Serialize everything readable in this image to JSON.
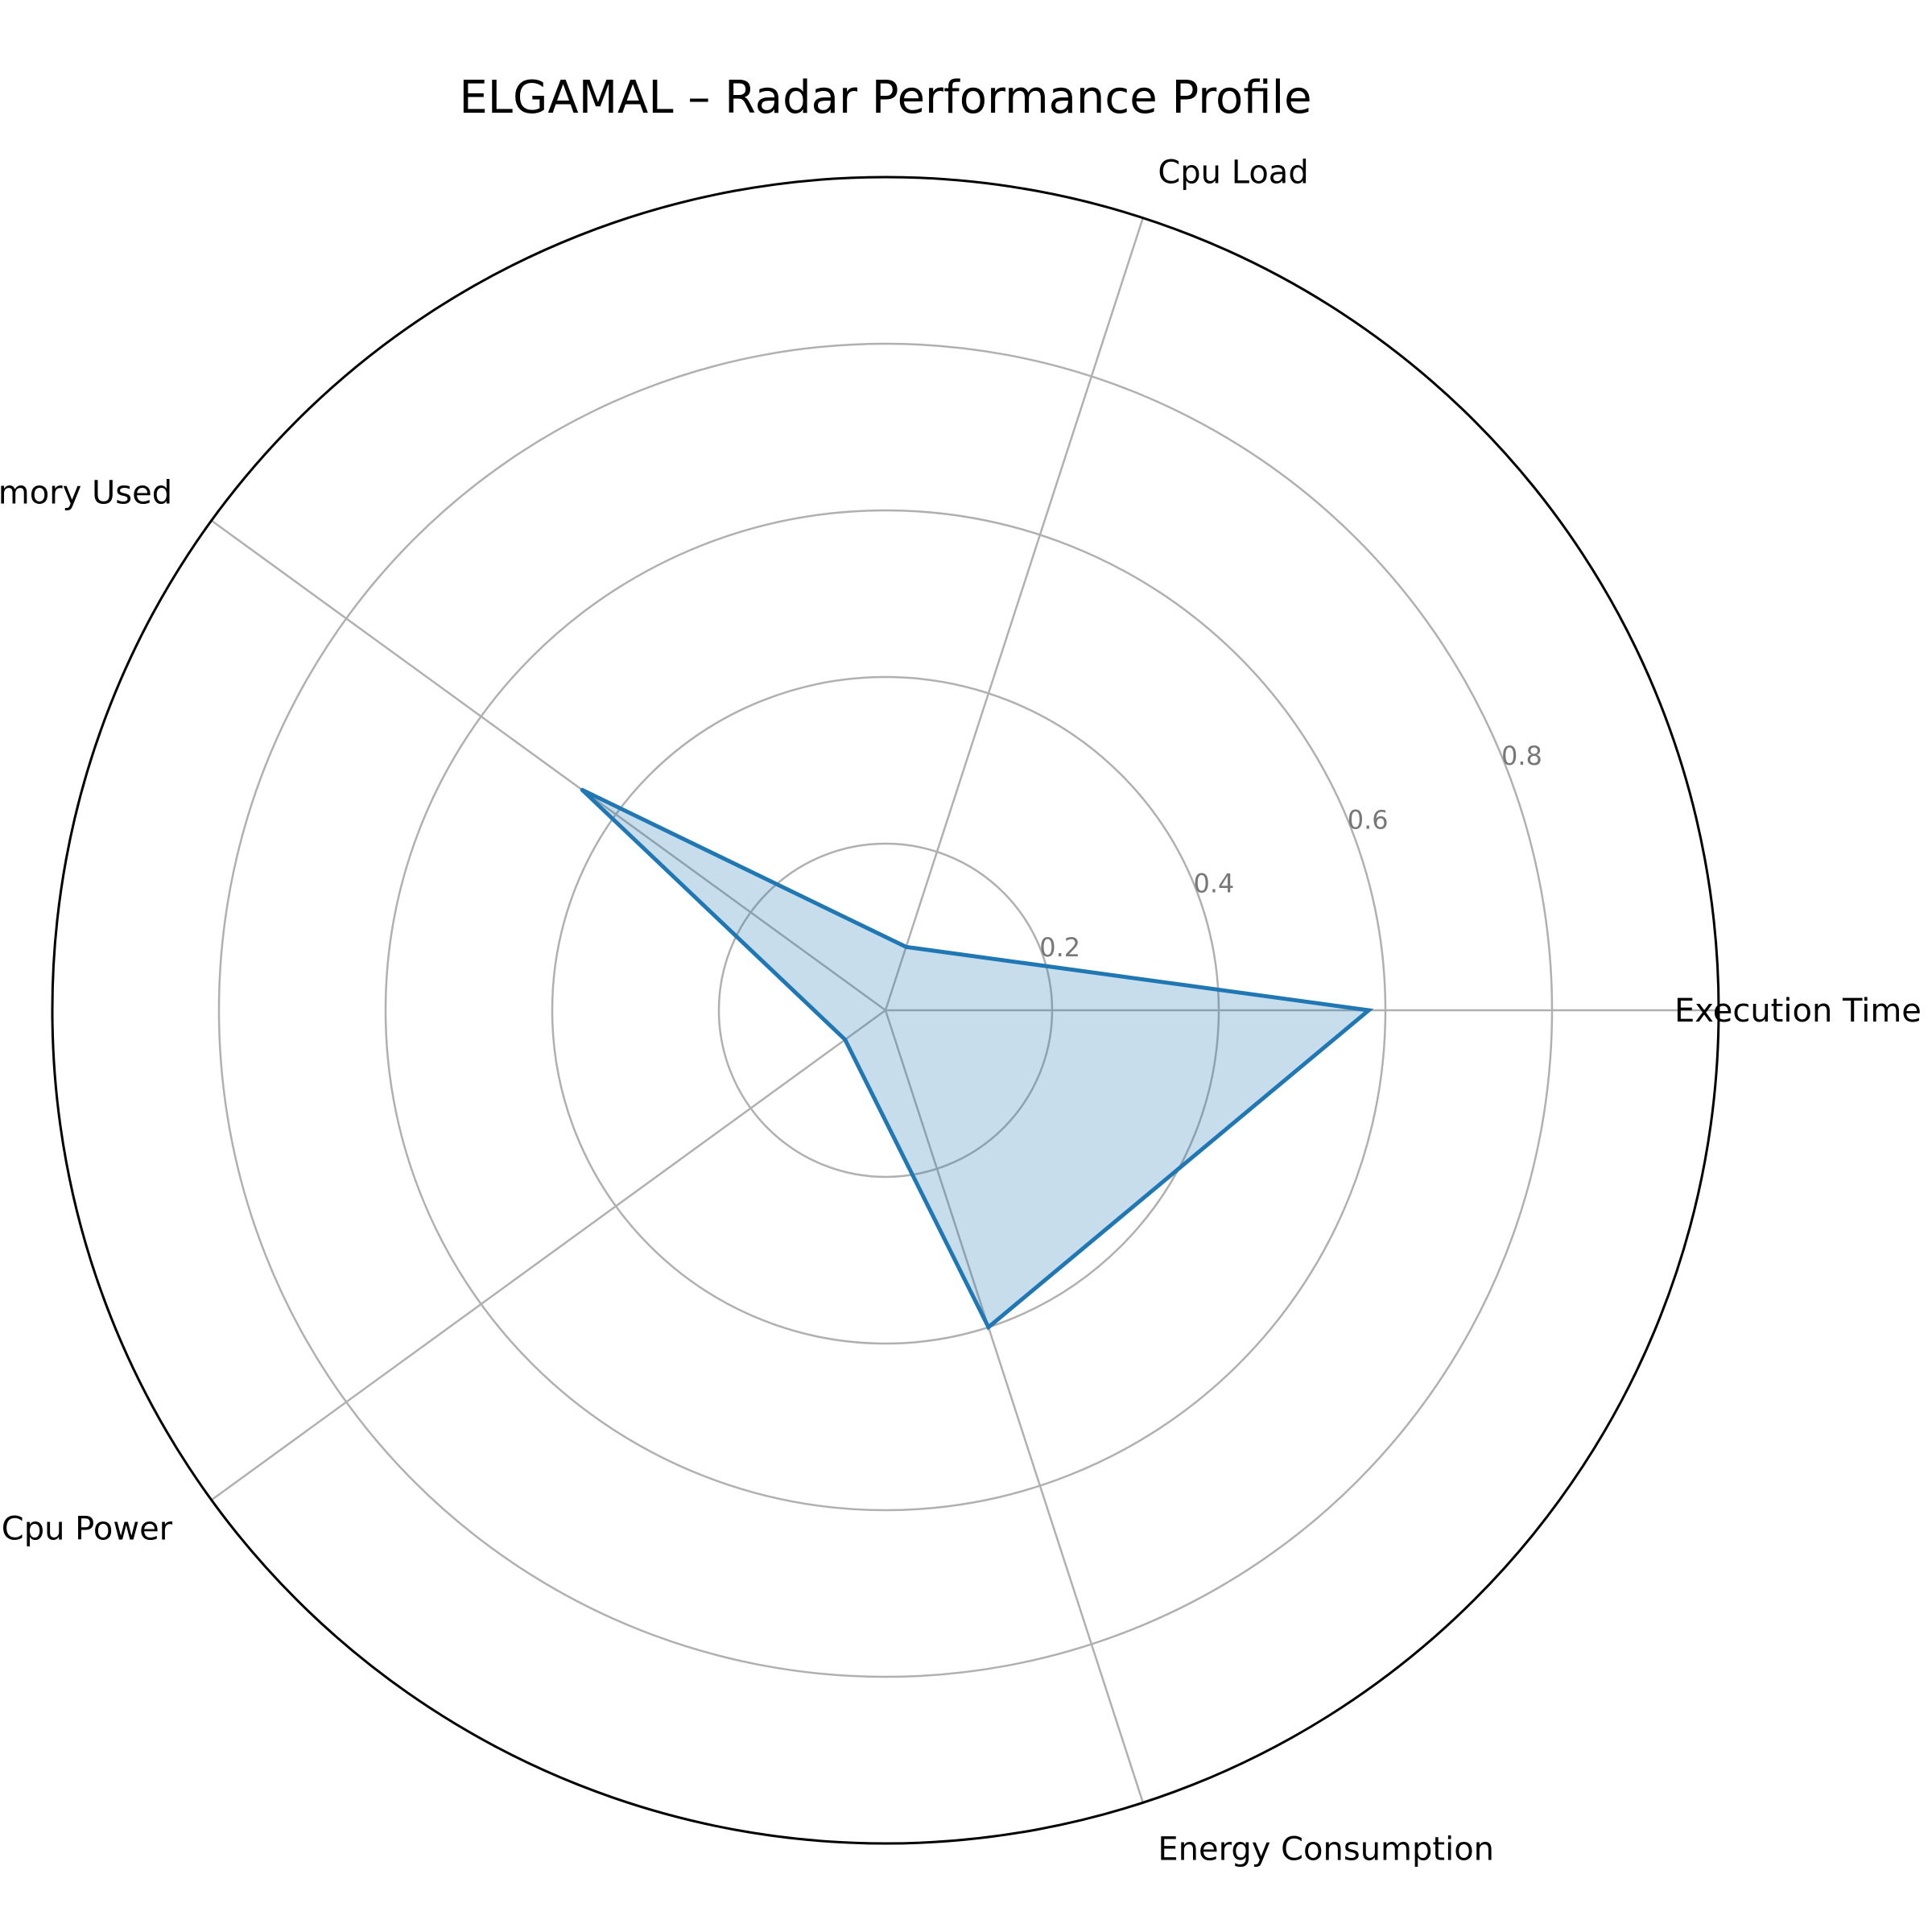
{
  "chart_data": {
    "type": "radar",
    "title": "ELGAMAL – Radar Performance Profile",
    "axes": [
      "Execution Time",
      "Cpu Load",
      "Memory Used",
      "Cpu Power",
      "Energy Consumption"
    ],
    "series": [
      {
        "values": [
          0.58,
          0.08,
          0.45,
          0.06,
          0.4
        ]
      }
    ],
    "rlim": [
      0,
      1
    ],
    "radial_ticks": [
      0.2,
      0.4,
      0.6,
      0.8
    ],
    "radial_tick_labels": [
      "0.2",
      "0.4",
      "0.6",
      "0.8"
    ],
    "grid": true,
    "colors": {
      "line": "#1f77b4",
      "fill": "#1f77b4",
      "grid": "#b0b0b0",
      "frame": "#000000",
      "tick_text": "#777777"
    }
  }
}
